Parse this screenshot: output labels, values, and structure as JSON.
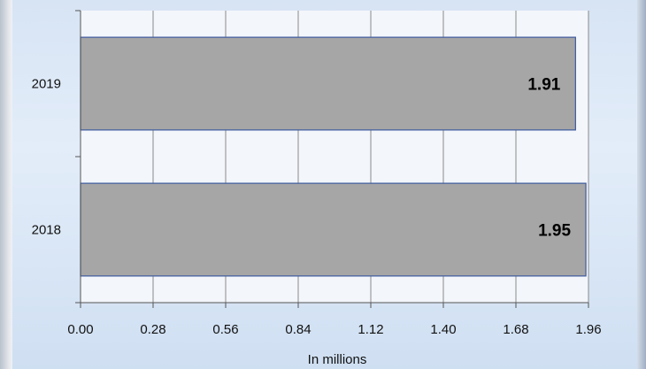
{
  "chart_data": {
    "type": "bar",
    "orientation": "horizontal",
    "categories": [
      "2019",
      "2018"
    ],
    "values": [
      1.91,
      1.95
    ],
    "data_labels": [
      "1.91",
      "1.95"
    ],
    "title": "",
    "xlabel": "In millions",
    "ylabel": "",
    "xlim": [
      0,
      1.96
    ],
    "x_ticks": [
      "0.00",
      "0.28",
      "0.56",
      "0.84",
      "1.12",
      "1.40",
      "1.68",
      "1.96"
    ],
    "grid": true,
    "bar_color": "#a6a6a6",
    "bar_border_color": "#3d5a9e",
    "plot_background": "#f3f6fb",
    "grid_color": "#8a8a8a"
  }
}
